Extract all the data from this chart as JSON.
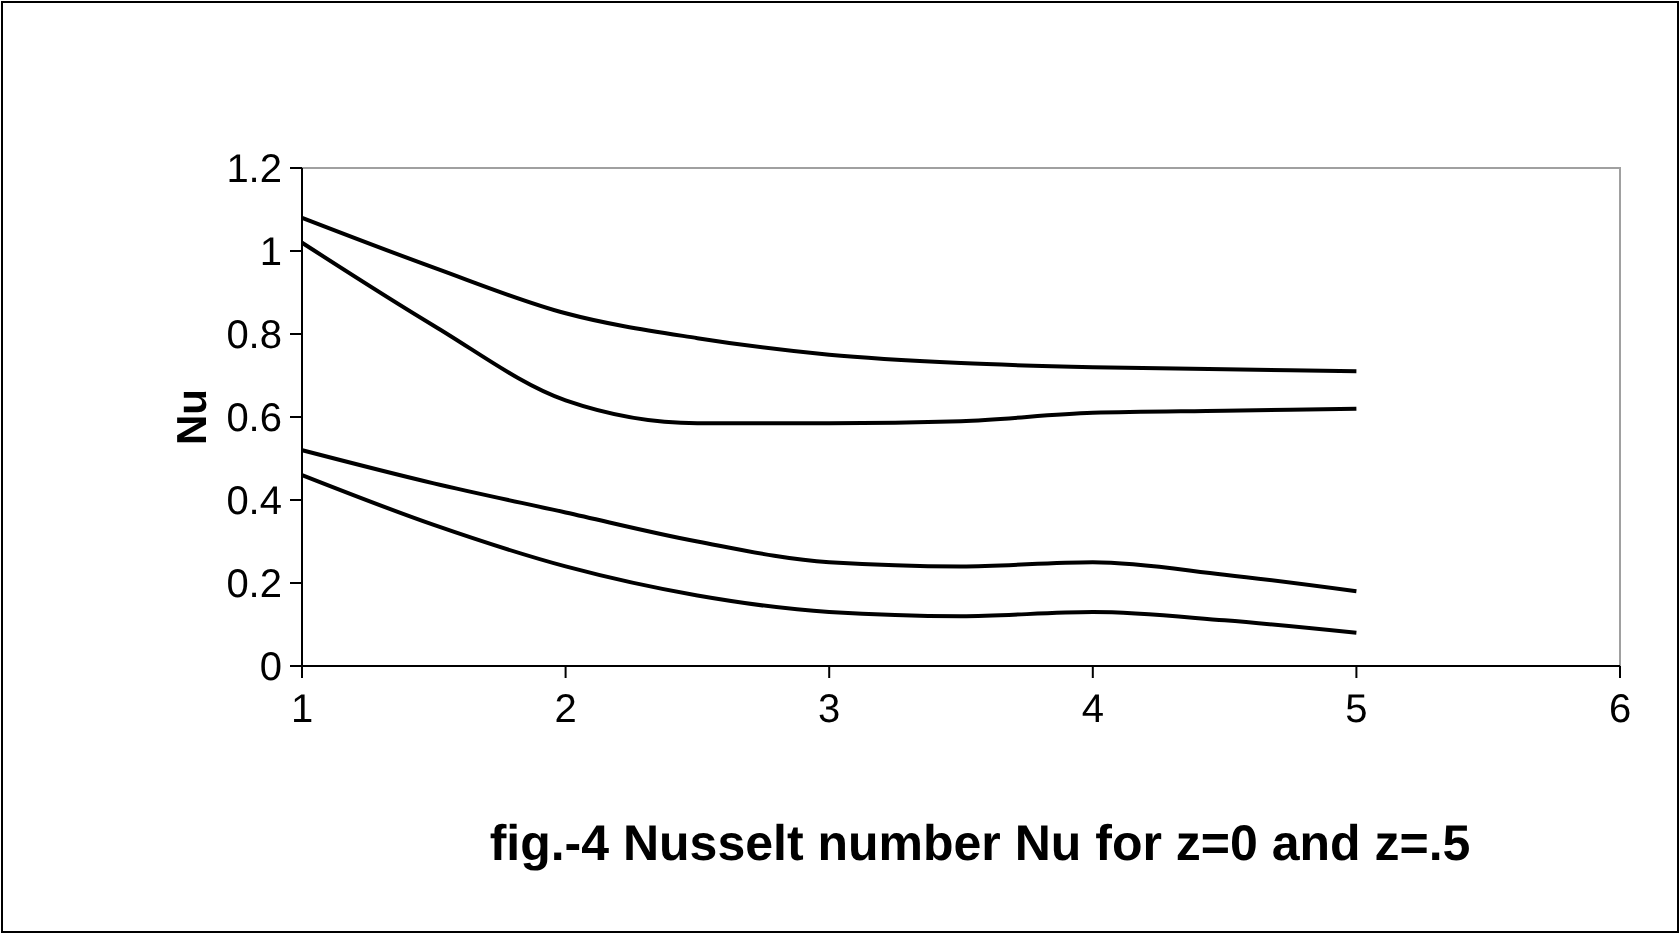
{
  "chart_data": {
    "type": "line",
    "title": "fig.-4 Nusselt number Nu for z=0 and z=.5",
    "ylabel": "Nu",
    "x": [
      1,
      1.5,
      2,
      2.5,
      3,
      3.5,
      4,
      4.5,
      5
    ],
    "series": [
      {
        "color": "#000000",
        "values": [
          1.08,
          0.96,
          0.85,
          0.79,
          0.75,
          0.73,
          0.72,
          0.715,
          0.71
        ]
      },
      {
        "color": "#000000",
        "values": [
          1.02,
          0.82,
          0.64,
          0.585,
          0.585,
          0.59,
          0.61,
          0.615,
          0.62
        ]
      },
      {
        "color": "#000000",
        "values": [
          0.52,
          0.44,
          0.37,
          0.3,
          0.25,
          0.24,
          0.25,
          0.22,
          0.18
        ]
      },
      {
        "color": "#000000",
        "values": [
          0.46,
          0.34,
          0.24,
          0.17,
          0.13,
          0.12,
          0.13,
          0.11,
          0.08
        ]
      }
    ],
    "xlim": [
      1,
      6
    ],
    "xticks": [
      1,
      2,
      3,
      4,
      5,
      6
    ],
    "ylim": [
      0,
      1.2
    ],
    "yticks": [
      0,
      0.2,
      0.4,
      0.6,
      0.8,
      1,
      1.2
    ],
    "grid": false,
    "marker": "none",
    "line_style": "solid"
  }
}
